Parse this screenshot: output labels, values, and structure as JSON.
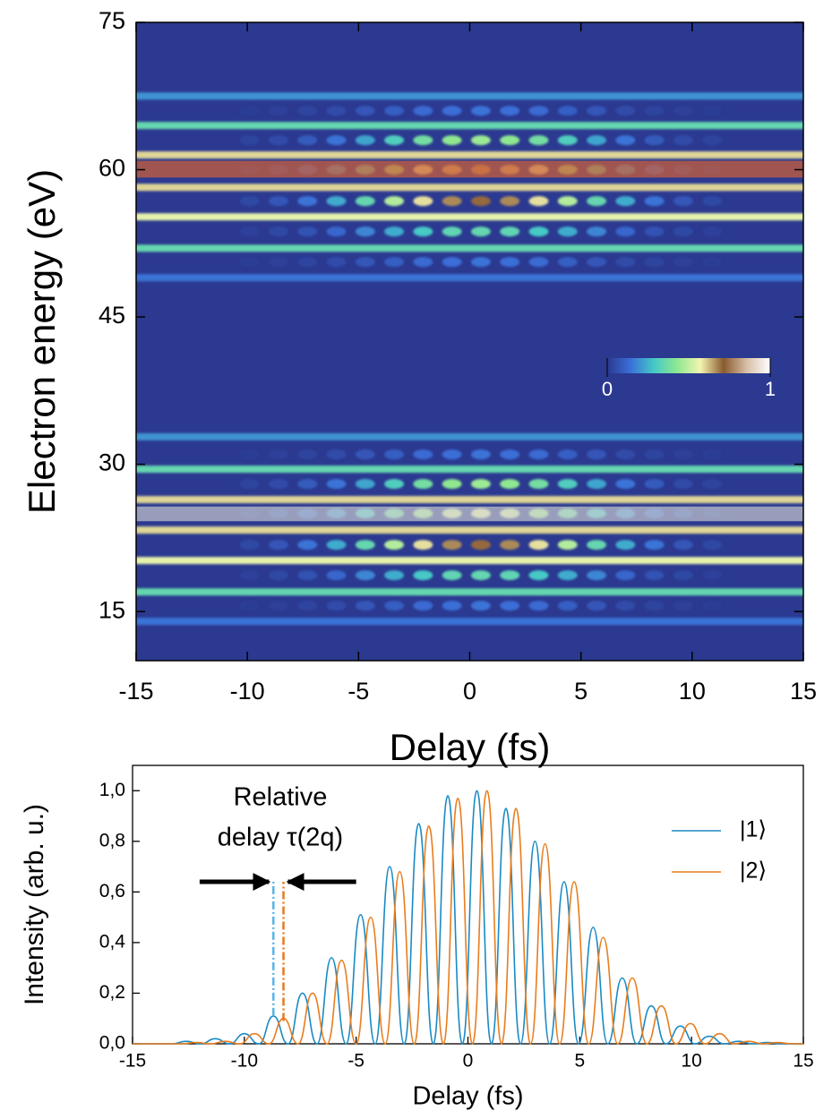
{
  "chart_data": [
    {
      "type": "heatmap",
      "x_label": "Delay (fs)",
      "y_label": "Electron energy (eV)",
      "xlim": [
        -15,
        15
      ],
      "xticks": [
        -15,
        -10,
        -5,
        0,
        5,
        10,
        15
      ],
      "ylim": [
        10,
        75
      ],
      "yticks": [
        15,
        30,
        45,
        60,
        75
      ],
      "colormap": [
        "#2b3990",
        "#3b6fd8",
        "#44c8c8",
        "#8ee890",
        "#f4f4b0",
        "#8a5a30",
        "#d8c0a8",
        "#ffffff"
      ],
      "colorbar_ticks": [
        0,
        1
      ],
      "lines": [
        {
          "y": 67.5,
          "value": 0.2
        },
        {
          "y": 64.5,
          "value": 0.35
        },
        {
          "y": 61.5,
          "value": 0.6
        },
        {
          "y": 58.2,
          "value": 0.6
        },
        {
          "y": 55.2,
          "value": 0.55
        },
        {
          "y": 52,
          "value": 0.35
        },
        {
          "y": 49,
          "value": 0.15
        },
        {
          "y": 32.8,
          "value": 0.2
        },
        {
          "y": 29.5,
          "value": 0.35
        },
        {
          "y": 26.4,
          "value": 0.6
        },
        {
          "y": 23.3,
          "value": 0.6
        },
        {
          "y": 20.2,
          "value": 0.55
        },
        {
          "y": 17,
          "value": 0.35
        },
        {
          "y": 14,
          "value": 0.15
        }
      ],
      "spot_x": [
        -9.9,
        -8.6,
        -7.3,
        -6.0,
        -4.7,
        -3.4,
        -2.1,
        -0.8,
        0.5,
        1.8,
        3.1,
        4.4,
        5.7,
        7.0,
        8.3,
        9.6,
        10.9
      ],
      "rows": [
        {
          "y": 66,
          "values": [
            0.01,
            0.02,
            0.03,
            0.05,
            0.08,
            0.1,
            0.13,
            0.14,
            0.15,
            0.14,
            0.13,
            0.1,
            0.08,
            0.05,
            0.03,
            0.02,
            0.01
          ]
        },
        {
          "y": 63,
          "values": [
            0.03,
            0.05,
            0.09,
            0.15,
            0.23,
            0.31,
            0.38,
            0.43,
            0.45,
            0.43,
            0.38,
            0.31,
            0.23,
            0.15,
            0.09,
            0.05,
            0.03
          ]
        },
        {
          "y": 60,
          "values": [
            0.04,
            0.08,
            0.14,
            0.22,
            0.33,
            0.44,
            0.55,
            0.62,
            0.65,
            0.62,
            0.55,
            0.44,
            0.33,
            0.22,
            0.14,
            0.08,
            0.04
          ]
        },
        {
          "y": 56.8,
          "values": [
            0.04,
            0.08,
            0.15,
            0.24,
            0.35,
            0.48,
            0.59,
            0.67,
            0.7,
            0.67,
            0.59,
            0.48,
            0.35,
            0.24,
            0.15,
            0.08,
            0.04
          ]
        },
        {
          "y": 53.7,
          "values": [
            0.02,
            0.04,
            0.07,
            0.12,
            0.18,
            0.24,
            0.29,
            0.34,
            0.35,
            0.34,
            0.29,
            0.24,
            0.18,
            0.12,
            0.07,
            0.04,
            0.02
          ]
        },
        {
          "y": 50.6,
          "values": [
            0.01,
            0.02,
            0.03,
            0.05,
            0.08,
            0.1,
            0.13,
            0.14,
            0.15,
            0.14,
            0.13,
            0.1,
            0.08,
            0.05,
            0.03,
            0.02,
            0.01
          ]
        },
        {
          "y": 31,
          "values": [
            0.01,
            0.02,
            0.03,
            0.05,
            0.08,
            0.1,
            0.13,
            0.14,
            0.15,
            0.14,
            0.13,
            0.1,
            0.08,
            0.05,
            0.03,
            0.02,
            0.01
          ]
        },
        {
          "y": 28,
          "values": [
            0.03,
            0.05,
            0.09,
            0.15,
            0.23,
            0.31,
            0.38,
            0.43,
            0.45,
            0.43,
            0.38,
            0.31,
            0.23,
            0.15,
            0.09,
            0.05,
            0.03
          ]
        },
        {
          "y": 25,
          "values": [
            0.03,
            0.07,
            0.12,
            0.19,
            0.28,
            0.37,
            0.46,
            0.53,
            0.55,
            0.53,
            0.46,
            0.37,
            0.28,
            0.19,
            0.12,
            0.07,
            0.03
          ]
        },
        {
          "y": 21.8,
          "values": [
            0.04,
            0.08,
            0.15,
            0.24,
            0.35,
            0.48,
            0.59,
            0.67,
            0.7,
            0.67,
            0.59,
            0.48,
            0.35,
            0.24,
            0.15,
            0.08,
            0.04
          ]
        },
        {
          "y": 18.7,
          "values": [
            0.02,
            0.04,
            0.07,
            0.12,
            0.18,
            0.24,
            0.29,
            0.34,
            0.35,
            0.34,
            0.29,
            0.24,
            0.18,
            0.12,
            0.07,
            0.04,
            0.02
          ]
        },
        {
          "y": 15.6,
          "values": [
            0.01,
            0.02,
            0.03,
            0.05,
            0.08,
            0.1,
            0.13,
            0.14,
            0.15,
            0.14,
            0.13,
            0.1,
            0.08,
            0.05,
            0.03,
            0.02,
            0.01
          ]
        }
      ],
      "highlights": [
        {
          "ylim": [
            59.2,
            60.9
          ],
          "color": "rgba(205,95,55,0.72)"
        },
        {
          "ylim": [
            24.2,
            25.7
          ],
          "color": "rgba(210,210,210,0.65)"
        }
      ]
    },
    {
      "type": "line",
      "x_label": "Delay (fs)",
      "y_label": "Intensity (arb. u.)",
      "xlim": [
        -15,
        15
      ],
      "xticks": [
        -15,
        -10,
        -5,
        0,
        5,
        10,
        15
      ],
      "ylim": [
        0,
        1.1
      ],
      "yticks": [
        {
          "value": 0,
          "label": "0,0"
        },
        {
          "value": 0.2,
          "label": "0,2"
        },
        {
          "value": 0.4,
          "label": "0,4"
        },
        {
          "value": 0.6,
          "label": "0,6"
        },
        {
          "value": 0.8,
          "label": "0,8"
        },
        {
          "value": 1,
          "label": "1,0"
        }
      ],
      "legend": "upper right",
      "series": [
        {
          "name": "|1⟩",
          "color": "#1a8ac4",
          "x": [
            -15,
            -13.25,
            -12.6,
            -11.95,
            -11.3,
            -10.65,
            -10.0,
            -9.35,
            -8.7,
            -8.05,
            -7.4,
            -6.75,
            -6.1,
            -5.45,
            -4.8,
            -4.15,
            -3.5,
            -2.85,
            -2.2,
            -1.55,
            -0.9,
            -0.25,
            0.4,
            1.05,
            1.7,
            2.35,
            3.0,
            3.65,
            4.3,
            4.95,
            5.6,
            6.25,
            6.9,
            7.55,
            8.2,
            8.85,
            9.5,
            10.15,
            10.8,
            11.45,
            12.1,
            12.75,
            13.4,
            14.05,
            15
          ],
          "values": [
            0,
            0,
            0.01,
            0,
            0.02,
            0,
            0.04,
            0,
            0.11,
            0,
            0.2,
            0,
            0.34,
            0,
            0.51,
            0,
            0.7,
            0,
            0.87,
            0,
            0.98,
            0,
            1.0,
            0,
            0.93,
            0,
            0.8,
            0,
            0.64,
            0,
            0.46,
            0,
            0.26,
            0,
            0.15,
            0,
            0.07,
            0,
            0.03,
            0,
            0.01,
            0,
            0.005,
            0,
            0
          ]
        },
        {
          "name": "|2⟩",
          "color": "#e87d1e",
          "x": [
            -15,
            -12.8,
            -12.15,
            -11.5,
            -10.85,
            -10.2,
            -9.55,
            -8.9,
            -8.25,
            -7.6,
            -6.95,
            -6.3,
            -5.65,
            -5.0,
            -4.35,
            -3.7,
            -3.05,
            -2.4,
            -1.75,
            -1.1,
            -0.45,
            0.2,
            0.85,
            1.5,
            2.15,
            2.8,
            3.45,
            4.1,
            4.75,
            5.4,
            6.05,
            6.7,
            7.35,
            8.0,
            8.65,
            9.3,
            9.95,
            10.6,
            11.25,
            11.9,
            12.55,
            13.2,
            13.85,
            14.5,
            15
          ],
          "values": [
            0,
            0,
            0.005,
            0,
            0.01,
            0,
            0.04,
            0,
            0.1,
            0,
            0.2,
            0,
            0.33,
            0,
            0.5,
            0,
            0.68,
            0,
            0.86,
            0,
            0.97,
            0,
            1.0,
            0,
            0.93,
            0,
            0.79,
            0,
            0.64,
            0,
            0.42,
            0,
            0.26,
            0,
            0.15,
            0,
            0.08,
            0,
            0.04,
            0,
            0.01,
            0,
            0.005,
            0,
            0
          ]
        }
      ],
      "annotation": [
        "Relative",
        "delay τ(2q)"
      ],
      "markers": [
        {
          "x": -8.7,
          "ylim": [
            0.11,
            0.64
          ],
          "color": "#5ab4e6"
        },
        {
          "x": -8.25,
          "ylim": [
            0.09,
            0.64
          ],
          "color": "#e8781e"
        }
      ],
      "arrows": [
        {
          "x": [
            -12,
            -8.9
          ],
          "y": 0.64
        },
        {
          "x": [
            -5,
            -8.05
          ],
          "y": 0.64
        }
      ]
    }
  ]
}
